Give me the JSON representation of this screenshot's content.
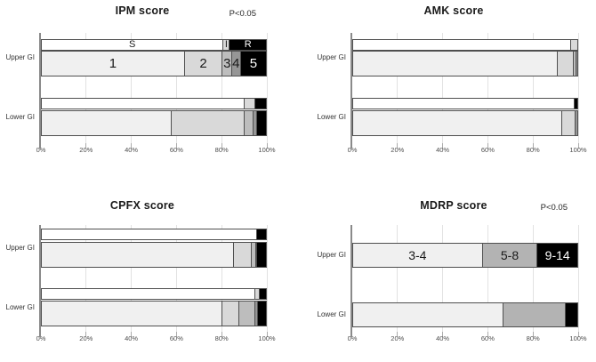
{
  "figure": {
    "background": "#ffffff",
    "bar_border_color": "#4f4f4f",
    "gridline_color": "#e2e2e2",
    "axis_color": "#8a8a8a",
    "palette": {
      "score1": "#f0f0f0",
      "score2": "#d9d9d9",
      "score3": "#bdbdbd",
      "score4": "#969696",
      "score5": "#000000",
      "susceptible": "#ffffff",
      "intermediate": "#d9d9d9",
      "resistant": "#000000"
    }
  },
  "chart_data": [
    {
      "type": "bar",
      "title": "IPM score",
      "annotation": "P<0.05",
      "orientation": "horizontal-stacked",
      "xlim": [
        0,
        100
      ],
      "x_tick_labels": [
        "0%",
        "20%",
        "40%",
        "60%",
        "80%",
        "100%"
      ],
      "categories": [
        "Upper GI",
        "Lower GI"
      ],
      "groups": [
        {
          "label": "Upper GI",
          "bars": [
            {
              "name": "susceptibility",
              "segments": [
                {
                  "label": "S",
                  "value": 80.7,
                  "color": "#ffffff",
                  "text_color": "#1a1a1a"
                },
                {
                  "label": "I",
                  "value": 2.8,
                  "color": "#d9d9d9",
                  "text_color": "#1a1a1a"
                },
                {
                  "label": "R",
                  "value": 16.5,
                  "color": "#000000",
                  "text_color": "#ffffff"
                }
              ]
            },
            {
              "name": "score",
              "segments": [
                {
                  "label": "1",
                  "value": 63.4,
                  "color": "#f0f0f0",
                  "text_color": "#1a1a1a"
                },
                {
                  "label": "2",
                  "value": 16.9,
                  "color": "#d9d9d9",
                  "text_color": "#1a1a1a"
                },
                {
                  "label": "3",
                  "value": 4.3,
                  "color": "#bdbdbd",
                  "text_color": "#1a1a1a"
                },
                {
                  "label": "4",
                  "value": 3.6,
                  "color": "#969696",
                  "text_color": "#1a1a1a"
                },
                {
                  "label": "5",
                  "value": 11.8,
                  "color": "#000000",
                  "text_color": "#ffffff"
                }
              ]
            }
          ]
        },
        {
          "label": "Lower GI",
          "bars": [
            {
              "name": "susceptibility",
              "segments": [
                {
                  "label": "",
                  "value": 90.2,
                  "color": "#ffffff"
                },
                {
                  "label": "",
                  "value": 4.6,
                  "color": "#d9d9d9"
                },
                {
                  "label": "",
                  "value": 5.2,
                  "color": "#000000"
                }
              ]
            },
            {
              "name": "score",
              "segments": [
                {
                  "label": "",
                  "value": 57.5,
                  "color": "#f0f0f0"
                },
                {
                  "label": "",
                  "value": 32.7,
                  "color": "#d9d9d9"
                },
                {
                  "label": "",
                  "value": 3.9,
                  "color": "#bdbdbd"
                },
                {
                  "label": "",
                  "value": 1.7,
                  "color": "#969696"
                },
                {
                  "label": "",
                  "value": 4.2,
                  "color": "#000000"
                }
              ]
            }
          ]
        }
      ]
    },
    {
      "type": "bar",
      "title": "AMK score",
      "annotation": "",
      "orientation": "horizontal-stacked",
      "xlim": [
        0,
        100
      ],
      "x_tick_labels": [
        "0%",
        "20%",
        "40%",
        "60%",
        "80%",
        "100%"
      ],
      "categories": [
        "Upper GI",
        "Lower GI"
      ],
      "groups": [
        {
          "label": "Upper GI",
          "bars": [
            {
              "name": "susceptibility",
              "segments": [
                {
                  "label": "",
                  "value": 97.0,
                  "color": "#ffffff"
                },
                {
                  "label": "",
                  "value": 3.0,
                  "color": "#d9d9d9"
                }
              ]
            },
            {
              "name": "score",
              "segments": [
                {
                  "label": "",
                  "value": 91.0,
                  "color": "#f0f0f0"
                },
                {
                  "label": "",
                  "value": 7.0,
                  "color": "#d9d9d9"
                },
                {
                  "label": "",
                  "value": 1.2,
                  "color": "#bdbdbd"
                },
                {
                  "label": "",
                  "value": 0.8,
                  "color": "#969696"
                }
              ]
            }
          ]
        },
        {
          "label": "Lower GI",
          "bars": [
            {
              "name": "susceptibility",
              "segments": [
                {
                  "label": "",
                  "value": 98.4,
                  "color": "#ffffff"
                },
                {
                  "label": "",
                  "value": 1.6,
                  "color": "#000000"
                }
              ]
            },
            {
              "name": "score",
              "segments": [
                {
                  "label": "",
                  "value": 92.8,
                  "color": "#f0f0f0"
                },
                {
                  "label": "",
                  "value": 6.2,
                  "color": "#d9d9d9"
                },
                {
                  "label": "",
                  "value": 1.0,
                  "color": "#969696"
                }
              ]
            }
          ]
        }
      ]
    },
    {
      "type": "bar",
      "title": "CPFX score",
      "annotation": "",
      "orientation": "horizontal-stacked",
      "xlim": [
        0,
        100
      ],
      "x_tick_labels": [
        "0%",
        "20%",
        "40%",
        "60%",
        "80%",
        "100%"
      ],
      "categories": [
        "Upper GI",
        "Lower GI"
      ],
      "groups": [
        {
          "label": "Upper GI",
          "bars": [
            {
              "name": "susceptibility",
              "segments": [
                {
                  "label": "",
                  "value": 95.8,
                  "color": "#ffffff"
                },
                {
                  "label": "",
                  "value": 4.2,
                  "color": "#000000"
                }
              ]
            },
            {
              "name": "score",
              "segments": [
                {
                  "label": "",
                  "value": 85.3,
                  "color": "#f0f0f0"
                },
                {
                  "label": "",
                  "value": 7.9,
                  "color": "#d9d9d9"
                },
                {
                  "label": "",
                  "value": 2.0,
                  "color": "#bdbdbd"
                },
                {
                  "label": "",
                  "value": 0.6,
                  "color": "#969696"
                },
                {
                  "label": "",
                  "value": 4.2,
                  "color": "#000000"
                }
              ]
            }
          ]
        },
        {
          "label": "Lower GI",
          "bars": [
            {
              "name": "susceptibility",
              "segments": [
                {
                  "label": "",
                  "value": 95.0,
                  "color": "#ffffff"
                },
                {
                  "label": "",
                  "value": 2.0,
                  "color": "#d9d9d9"
                },
                {
                  "label": "",
                  "value": 3.0,
                  "color": "#000000"
                }
              ]
            },
            {
              "name": "score",
              "segments": [
                {
                  "label": "",
                  "value": 80.3,
                  "color": "#f0f0f0"
                },
                {
                  "label": "",
                  "value": 7.6,
                  "color": "#d9d9d9"
                },
                {
                  "label": "",
                  "value": 7.1,
                  "color": "#bdbdbd"
                },
                {
                  "label": "",
                  "value": 1.0,
                  "color": "#969696"
                },
                {
                  "label": "",
                  "value": 4.0,
                  "color": "#000000"
                }
              ]
            }
          ]
        }
      ]
    },
    {
      "type": "bar",
      "title": "MDRP score",
      "annotation": "P<0.05",
      "orientation": "horizontal-stacked",
      "xlim": [
        0,
        100
      ],
      "x_tick_labels": [
        "0%",
        "20%",
        "40%",
        "60%",
        "80%",
        "100%"
      ],
      "categories": [
        "Upper GI",
        "Lower GI"
      ],
      "groups": [
        {
          "label": "Upper GI",
          "bars": [
            {
              "name": "score",
              "segments": [
                {
                  "label": "3-4",
                  "value": 57.4,
                  "color": "#f0f0f0",
                  "text_color": "#1a1a1a"
                },
                {
                  "label": "5-8",
                  "value": 24.5,
                  "color": "#b3b3b3",
                  "text_color": "#1a1a1a"
                },
                {
                  "label": "9-14",
                  "value": 18.1,
                  "color": "#000000",
                  "text_color": "#ffffff"
                }
              ]
            }
          ]
        },
        {
          "label": "Lower GI",
          "bars": [
            {
              "name": "score",
              "segments": [
                {
                  "label": "",
                  "value": 66.5,
                  "color": "#f0f0f0"
                },
                {
                  "label": "",
                  "value": 28.0,
                  "color": "#b3b3b3"
                },
                {
                  "label": "",
                  "value": 5.5,
                  "color": "#000000"
                }
              ]
            }
          ]
        }
      ]
    }
  ]
}
